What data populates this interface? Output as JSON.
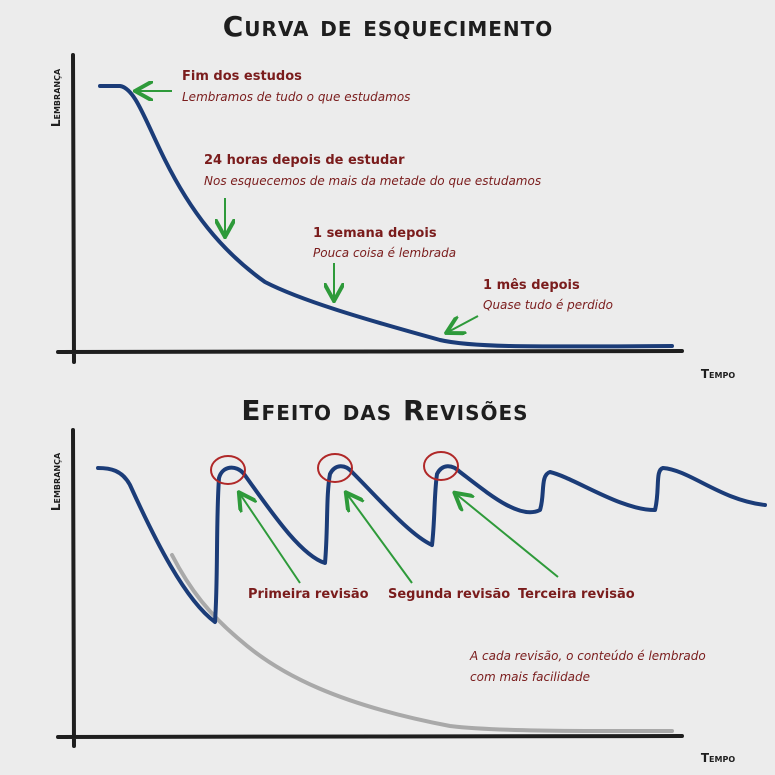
{
  "panels": [
    {
      "title": "Curva de esquecimento",
      "y_label": "Lembrança",
      "x_label": "Tempo",
      "annotations": [
        {
          "heading": "Fim dos estudos",
          "text": "Lembramos de tudo o que estudamos"
        },
        {
          "heading": "24 horas depois de estudar",
          "text": "Nos esquecemos de mais da metade do que estudamos"
        },
        {
          "heading": "1 semana depois",
          "text": "Pouca coisa é lembrada"
        },
        {
          "heading": "1 mês depois",
          "text": "Quase tudo é perdido"
        }
      ]
    },
    {
      "title": "Efeito das Revisões",
      "y_label": "Lembrança",
      "x_label": "Tempo",
      "labels": [
        "Primeira revisão",
        "Segunda revisão",
        "Terceira revisão"
      ],
      "note": [
        "A cada revisão, o conteúdo é lembrado",
        "com mais facilidade"
      ]
    }
  ]
}
